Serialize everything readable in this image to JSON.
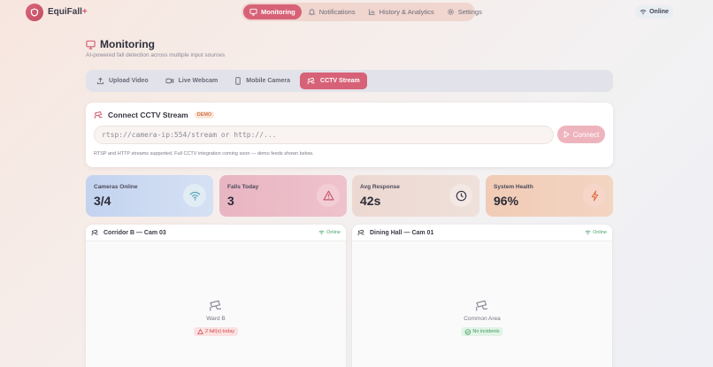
{
  "app": {
    "brand_name": "EquiFall",
    "brand_suffix": "+",
    "brand_color": "#d15a6f"
  },
  "nav": {
    "items": [
      {
        "label": "Monitoring",
        "icon": "monitor-icon",
        "active": true
      },
      {
        "label": "Notifications",
        "icon": "bell-icon",
        "active": false
      },
      {
        "label": "History & Analytics",
        "icon": "bar-chart-icon",
        "active": false
      },
      {
        "label": "Settings",
        "icon": "gear-icon",
        "active": false
      }
    ],
    "status": {
      "label": "Online",
      "icon": "wifi-icon"
    }
  },
  "page": {
    "title": "Monitoring",
    "subtitle": "AI-powered fall detection across multiple input sources"
  },
  "tabs": [
    {
      "label": "Upload Video",
      "icon": "upload-icon",
      "active": false
    },
    {
      "label": "Live Webcam",
      "icon": "video-icon",
      "active": false
    },
    {
      "label": "Mobile Camera",
      "icon": "smartphone-icon",
      "active": false
    },
    {
      "label": "CCTV Stream",
      "icon": "cctv-icon",
      "active": true
    }
  ],
  "connect": {
    "title": "Connect CCTV Stream",
    "badge": "DEMO",
    "input_placeholder": "rtsp://camera-ip:554/stream or http://...",
    "input_value": "",
    "button_label": "Connect",
    "note": "RTSP and HTTP streams supported. Full CCTV integration coming soon — demo feeds shown below."
  },
  "stats": [
    {
      "label": "Cameras Online",
      "value": "3/4",
      "icon": "wifi-icon",
      "color": "#5aa7b8"
    },
    {
      "label": "Falls Today",
      "value": "3",
      "icon": "warning-triangle-icon",
      "color": "#c8566b"
    },
    {
      "label": "Avg Response",
      "value": "42s",
      "icon": "clock-icon",
      "color": "#3a3a48"
    },
    {
      "label": "System Health",
      "value": "96%",
      "icon": "lightning-icon",
      "color": "#e07045"
    }
  ],
  "cameras": [
    {
      "name": "Corridor B — Cam 03",
      "status": "Online",
      "location": "Ward B",
      "badge": "2 fall(s) today",
      "badge_type": "alert"
    },
    {
      "name": "Dining Hall — Cam 01",
      "status": "Online",
      "location": "Common Area",
      "badge": "No incidents",
      "badge_type": "ok"
    }
  ],
  "colors": {
    "accent": "#d76277",
    "online_green": "#4ba56a",
    "alert_red": "#d14a4a"
  }
}
